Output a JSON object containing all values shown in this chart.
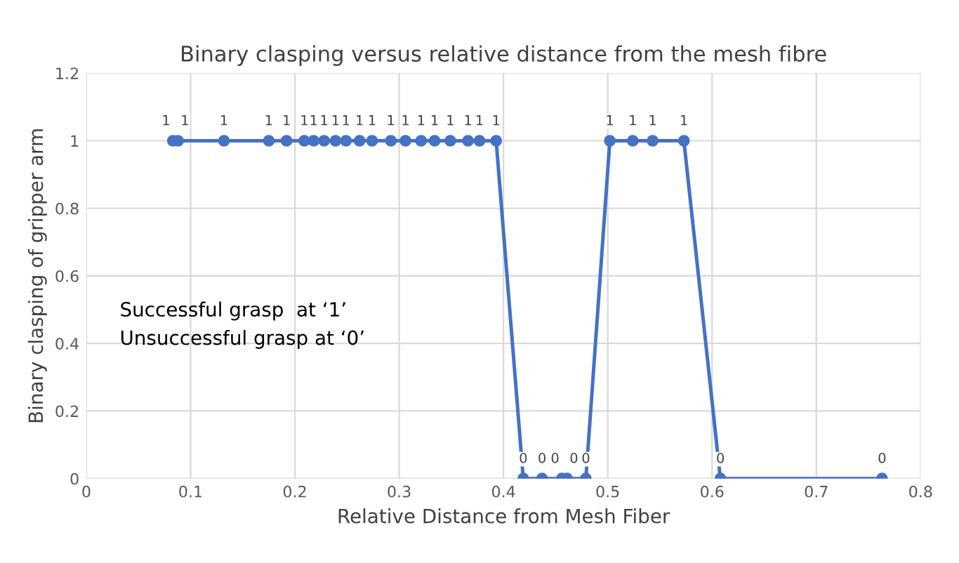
{
  "chart_data": {
    "type": "line",
    "title": "Binary clasping versus relative distance from the mesh fibre",
    "xlabel": "Relative Distance from Mesh Fiber",
    "ylabel": "Binary clasping of gripper arm",
    "x": [
      0.083,
      0.088,
      0.132,
      0.175,
      0.192,
      0.209,
      0.218,
      0.228,
      0.239,
      0.249,
      0.262,
      0.274,
      0.292,
      0.306,
      0.321,
      0.334,
      0.349,
      0.366,
      0.377,
      0.393,
      0.419,
      0.437,
      0.456,
      0.461,
      0.479,
      0.502,
      0.524,
      0.543,
      0.573,
      0.608,
      0.763
    ],
    "series": [
      {
        "color": "#4472c4",
        "values": [
          1,
          1,
          1,
          1,
          1,
          1,
          1,
          1,
          1,
          1,
          1,
          1,
          1,
          1,
          1,
          1,
          1,
          1,
          1,
          1,
          0,
          0,
          0,
          0,
          0,
          1,
          1,
          1,
          1,
          0,
          0
        ]
      }
    ],
    "data_labels": true,
    "marker": "circle",
    "line_style": "solid",
    "grid": true,
    "xlim": [
      0,
      0.8
    ],
    "xticks": [
      0,
      0.1,
      0.2,
      0.3,
      0.4,
      0.5,
      0.6,
      0.7,
      0.8
    ],
    "ylim": [
      0,
      1.2
    ],
    "yticks": [
      0,
      0.2,
      0.4,
      0.6,
      0.8,
      1,
      1.2
    ],
    "annotations": [
      "Successful grasp  at ‘1’",
      "Unsuccessful grasp at ‘0’"
    ]
  }
}
